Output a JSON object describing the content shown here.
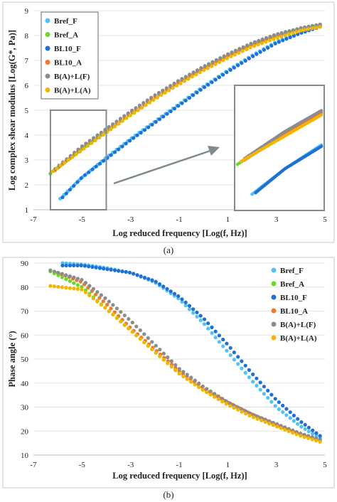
{
  "colors": {
    "Bref_F": "#4fc3f7",
    "Bref_A": "#66dd22",
    "BL10_F": "#1f6fd6",
    "BL10_A": "#f0782a",
    "B(A)+L(F)": "#8c8c8c",
    "B(A)+L(A)": "#f5b400"
  },
  "chart_data": [
    {
      "type": "scatter",
      "panel_label": "(a)",
      "xlabel": "Log reduced frequency [Log(f, Hz)]",
      "ylabel": "Log complex shear modulus [Log(G*, Pa)]",
      "xlim": [
        -7,
        5
      ],
      "ylim": [
        1,
        9
      ],
      "xticks": [
        -7,
        -5,
        -3,
        -1,
        1,
        3,
        5
      ],
      "yticks": [
        1,
        2,
        3,
        4,
        5,
        6,
        7,
        8,
        9
      ],
      "grid": "horizontal",
      "legend_position": "top-left",
      "zoom_box": {
        "x": [
          -6.3,
          -4.0
        ],
        "y": [
          1.0,
          5.0
        ]
      },
      "series": [
        {
          "name": "Bref_F",
          "x": [
            -5.9,
            -5.0,
            -4.0,
            -3.0,
            -2.0,
            -1.0,
            0.0,
            1.0,
            2.0,
            3.0,
            4.0,
            4.8
          ],
          "y": [
            1.45,
            2.3,
            3.1,
            3.85,
            4.55,
            5.25,
            5.95,
            6.6,
            7.2,
            7.75,
            8.15,
            8.4
          ]
        },
        {
          "name": "Bref_A",
          "x": [
            -6.3,
            -5.0,
            -4.0,
            -3.0,
            -2.0,
            -1.0,
            0.0,
            1.0,
            2.0,
            3.0,
            4.0,
            4.8
          ],
          "y": [
            2.45,
            3.45,
            4.15,
            4.85,
            5.5,
            6.1,
            6.65,
            7.15,
            7.6,
            7.95,
            8.25,
            8.4
          ]
        },
        {
          "name": "BL10_F",
          "x": [
            -5.8,
            -5.0,
            -4.0,
            -3.0,
            -2.0,
            -1.0,
            0.0,
            1.0,
            2.0,
            3.0,
            4.0,
            4.8
          ],
          "y": [
            1.5,
            2.3,
            3.05,
            3.8,
            4.5,
            5.2,
            5.9,
            6.55,
            7.15,
            7.7,
            8.1,
            8.35
          ]
        },
        {
          "name": "BL10_A",
          "x": [
            -6.1,
            -5.0,
            -4.0,
            -3.0,
            -2.0,
            -1.0,
            0.0,
            1.0,
            2.0,
            3.0,
            4.0,
            4.8
          ],
          "y": [
            2.6,
            3.5,
            4.2,
            4.9,
            5.55,
            6.15,
            6.7,
            7.2,
            7.65,
            8.0,
            8.3,
            8.45
          ]
        },
        {
          "name": "B(A)+L(F)",
          "x": [
            -6.1,
            -5.0,
            -4.0,
            -3.0,
            -2.0,
            -1.0,
            0.0,
            1.0,
            2.0,
            3.0,
            4.0,
            4.8
          ],
          "y": [
            2.65,
            3.55,
            4.25,
            4.95,
            5.6,
            6.2,
            6.75,
            7.25,
            7.7,
            8.05,
            8.3,
            8.45
          ]
        },
        {
          "name": "B(A)+L(A)",
          "x": [
            -6.2,
            -5.0,
            -4.0,
            -3.0,
            -2.0,
            -1.0,
            0.0,
            1.0,
            2.0,
            3.0,
            4.0,
            4.8
          ],
          "y": [
            2.55,
            3.4,
            4.1,
            4.8,
            5.45,
            6.05,
            6.6,
            7.1,
            7.55,
            7.9,
            8.2,
            8.35
          ]
        }
      ]
    },
    {
      "type": "scatter",
      "panel_label": "(b)",
      "xlabel": "Log reduced frequency [Log(f, Hz)]",
      "ylabel": "Phase angle (°)",
      "xlim": [
        -7,
        5
      ],
      "ylim": [
        10,
        90
      ],
      "xticks": [
        -7,
        -5,
        -3,
        -1,
        1,
        3,
        5
      ],
      "yticks": [
        10,
        20,
        30,
        40,
        50,
        60,
        70,
        80,
        90
      ],
      "grid": "horizontal",
      "legend_position": "top-right",
      "series": [
        {
          "name": "Bref_F",
          "x": [
            -5.8,
            -5.0,
            -4.0,
            -3.0,
            -2.0,
            -1.0,
            0.0,
            1.0,
            2.0,
            3.0,
            4.0,
            4.8
          ],
          "y": [
            90,
            89.5,
            88,
            86,
            82,
            75,
            65,
            53,
            41,
            30,
            22,
            17
          ]
        },
        {
          "name": "Bref_A",
          "x": [
            -6.3,
            -5.0,
            -4.0,
            -3.0,
            -2.0,
            -1.0,
            0.0,
            1.0,
            2.0,
            3.0,
            4.0,
            4.8
          ],
          "y": [
            86.5,
            80,
            71,
            62,
            53,
            44,
            37,
            31,
            26,
            22,
            18.5,
            16
          ]
        },
        {
          "name": "BL10_F",
          "x": [
            -5.8,
            -5.0,
            -4.0,
            -3.0,
            -2.0,
            -1.0,
            0.0,
            1.0,
            2.0,
            3.0,
            4.0,
            4.8
          ],
          "y": [
            89,
            89,
            87.5,
            86,
            82.5,
            76,
            67,
            56,
            44,
            33,
            24,
            18
          ]
        },
        {
          "name": "BL10_A",
          "x": [
            -6.0,
            -5.0,
            -4.0,
            -3.0,
            -2.0,
            -1.0,
            0.0,
            1.0,
            2.0,
            3.0,
            4.0,
            4.8
          ],
          "y": [
            86,
            82,
            73,
            63,
            54,
            45,
            38,
            32,
            27,
            22.5,
            18.5,
            16
          ]
        },
        {
          "name": "B(A)+L(F)",
          "x": [
            -6.3,
            -5.0,
            -4.0,
            -3.0,
            -2.0,
            -1.0,
            0.0,
            1.0,
            2.0,
            3.0,
            4.0,
            4.8
          ],
          "y": [
            87,
            83,
            75,
            66,
            56,
            46,
            38.5,
            32,
            27,
            23,
            19,
            16.5
          ]
        },
        {
          "name": "B(A)+L(A)",
          "x": [
            -6.3,
            -5.0,
            -4.0,
            -3.0,
            -2.0,
            -1.0,
            0.0,
            1.0,
            2.0,
            3.0,
            4.0,
            4.8
          ],
          "y": [
            80.5,
            79,
            71,
            62,
            53,
            44,
            37,
            31,
            26,
            22,
            18,
            15.5
          ]
        }
      ]
    }
  ]
}
